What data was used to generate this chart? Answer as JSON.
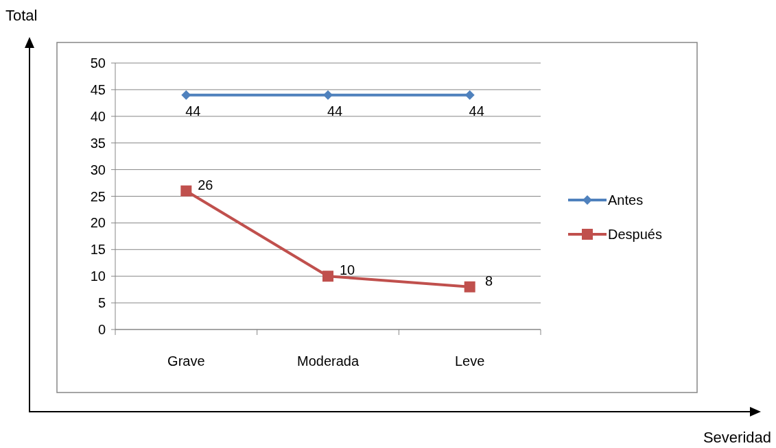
{
  "chart_data": {
    "type": "line",
    "annotations": [
      "Severidad"
    ],
    "ylabel": "Total",
    "categories": [
      "Grave",
      "Moderada",
      "Leve"
    ],
    "series": [
      {
        "name": "Antes",
        "color": "#4f81bd",
        "values": [
          44,
          44,
          44
        ],
        "marker": "diamond"
      },
      {
        "name": "Después",
        "color": "#c0504d",
        "values": [
          26,
          10,
          8
        ],
        "marker": "square"
      }
    ],
    "ylim": [
      0,
      50
    ],
    "yticks": [
      0,
      5,
      10,
      15,
      20,
      25,
      30,
      35,
      40,
      45,
      50
    ],
    "grid": "y",
    "legend": "right",
    "data_labels": true
  }
}
